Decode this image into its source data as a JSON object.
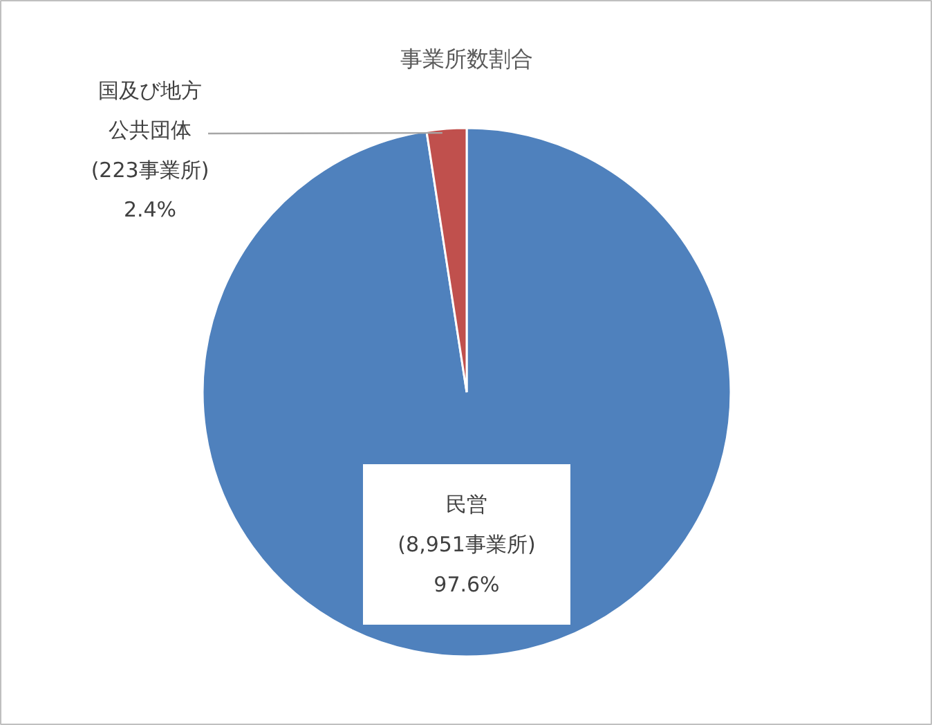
{
  "chart_data": {
    "type": "pie",
    "title": "事業所数割合",
    "categories": [
      "民営",
      "国及び地方公共団体"
    ],
    "values": [
      8951,
      223
    ],
    "value_labels": [
      "(8,951事業所)\n97.6%",
      "(223事業所)\n2.4%"
    ],
    "colors": [
      "#4f81bd",
      "#c0504d"
    ]
  }
}
